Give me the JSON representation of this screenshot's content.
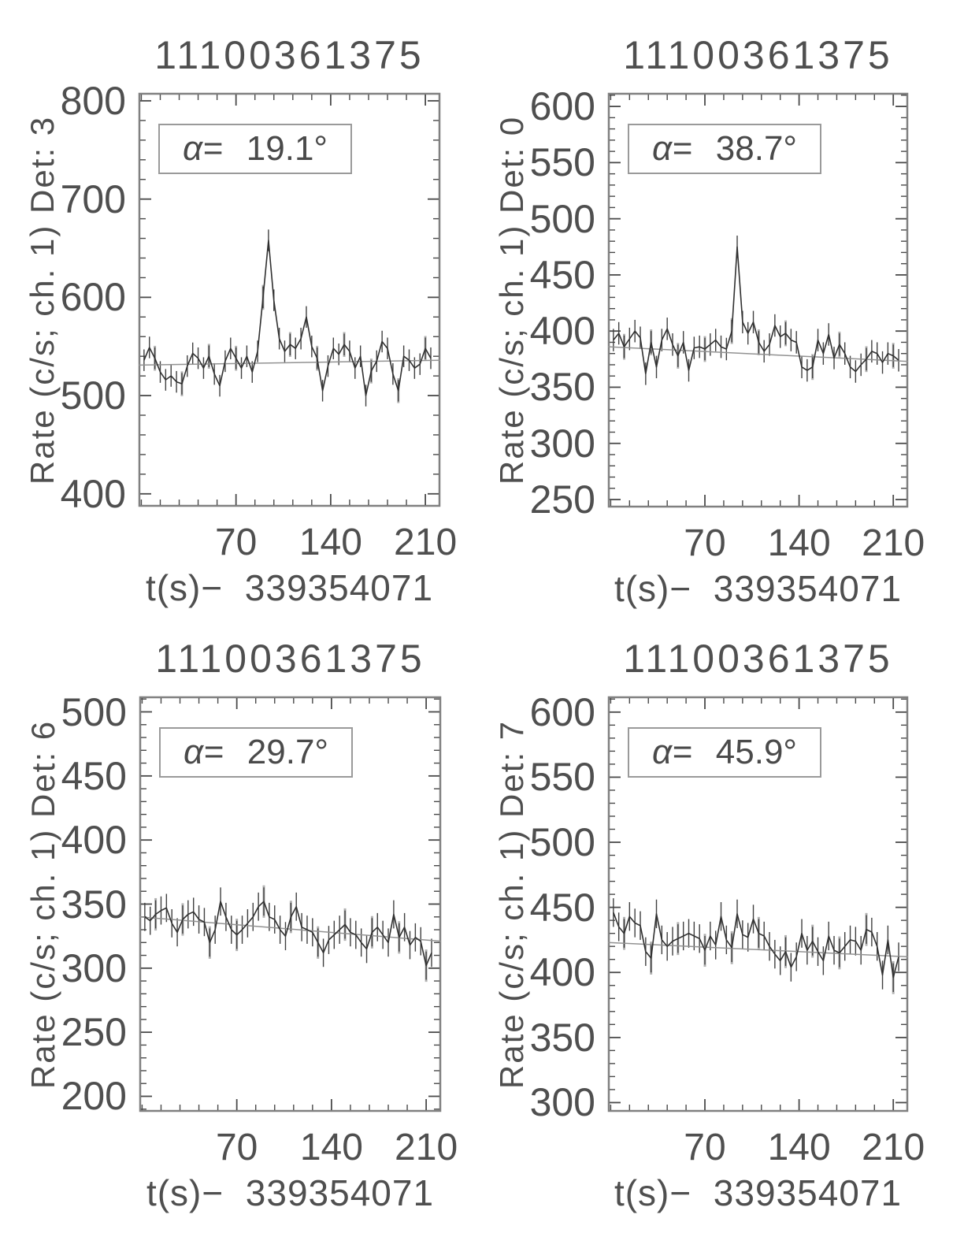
{
  "page": {
    "background": "#ffffff",
    "text_color": "#4f4f4f",
    "data_line_color": "#303030",
    "error_bar_color": "#404040",
    "gray_error_bar_color": "#b2b2b2",
    "trend_line_color": "#929292",
    "frame_color": "#808080",
    "tick_color": "#4a4a4a"
  },
  "chart_data": [
    {
      "type": "line",
      "title": "11100361375",
      "ylabel": "Rate (c/s; ch. 1) Det: 3",
      "xlabel": "t(s)−  339354071",
      "alpha_symbol": "α=",
      "alpha_value": "19.1°",
      "xlim": [
        -2,
        221
      ],
      "ylim": [
        387,
        808
      ],
      "xticks": [
        70,
        140,
        210
      ],
      "yticks": [
        400,
        500,
        600,
        700,
        800
      ],
      "x_minor_step": 14,
      "y_minor_step": 20,
      "x_start": 2,
      "x_step": 4,
      "err": 11,
      "values": [
        536,
        549,
        538,
        524,
        516,
        520,
        514,
        512,
        530,
        543,
        538,
        528,
        540,
        522,
        510,
        535,
        548,
        538,
        528,
        540,
        524,
        545,
        600,
        658,
        597,
        558,
        545,
        552,
        548,
        558,
        580,
        550,
        538,
        505,
        530,
        548,
        542,
        552,
        545,
        528,
        540,
        500,
        525,
        535,
        555,
        548,
        522,
        505,
        540,
        536,
        528,
        532,
        548,
        538
      ],
      "trend": {
        "start": 531,
        "end": 536
      }
    },
    {
      "type": "line",
      "title": "11100361375",
      "ylabel": "Rate (c/s; ch. 1) Det: 0",
      "xlabel": "t(s)−  339354071",
      "alpha_symbol": "α=",
      "alpha_value": "38.7°",
      "xlim": [
        -2,
        221
      ],
      "ylim": [
        243,
        612
      ],
      "xticks": [
        70,
        140,
        210
      ],
      "yticks": [
        250,
        300,
        350,
        400,
        450,
        500,
        550,
        600
      ],
      "x_minor_step": 14,
      "y_minor_step": 10,
      "x_start": 2,
      "x_step": 4,
      "err": 10,
      "values": [
        392,
        398,
        386,
        393,
        400,
        394,
        362,
        390,
        368,
        392,
        402,
        388,
        378,
        390,
        365,
        385,
        386,
        384,
        388,
        392,
        386,
        384,
        400,
        475,
        408,
        398,
        408,
        390,
        382,
        388,
        405,
        395,
        398,
        392,
        390,
        368,
        365,
        368,
        392,
        380,
        397,
        376,
        388,
        380,
        368,
        364,
        370,
        375,
        382,
        380,
        372,
        380,
        378,
        374
      ],
      "trend": {
        "start": 386,
        "end": 373
      }
    },
    {
      "type": "line",
      "title": "11100361375",
      "ylabel": "Rate (c/s; ch. 1) Det: 6",
      "xlabel": "t(s)−  339354071",
      "alpha_symbol": "α=",
      "alpha_value": "29.7°",
      "xlim": [
        -2,
        221
      ],
      "ylim": [
        188,
        512
      ],
      "xticks": [
        70,
        140,
        210
      ],
      "yticks": [
        200,
        250,
        300,
        350,
        400,
        450,
        500
      ],
      "x_minor_step": 14,
      "y_minor_step": 10,
      "x_start": 2,
      "x_step": 4,
      "err": 11,
      "values": [
        340,
        337,
        342,
        345,
        347,
        335,
        328,
        338,
        342,
        344,
        338,
        336,
        320,
        330,
        352,
        340,
        330,
        326,
        330,
        335,
        340,
        348,
        352,
        340,
        338,
        330,
        325,
        340,
        348,
        332,
        330,
        328,
        320,
        312,
        322,
        326,
        330,
        334,
        328,
        326,
        320,
        315,
        328,
        332,
        326,
        320,
        342,
        324,
        332,
        318,
        324,
        321,
        302,
        312
      ],
      "trend": {
        "start": 340,
        "end": 321
      }
    },
    {
      "type": "line",
      "title": "11100361375",
      "ylabel": "Rate (c/s; ch. 1) Det: 7",
      "xlabel": "t(s)−  339354071",
      "alpha_symbol": "α=",
      "alpha_value": "45.9°",
      "xlim": [
        -2,
        221
      ],
      "ylim": [
        293,
        612
      ],
      "xticks": [
        70,
        140,
        210
      ],
      "yticks": [
        300,
        350,
        400,
        450,
        500,
        550,
        600
      ],
      "x_minor_step": 14,
      "y_minor_step": 10,
      "x_start": 2,
      "x_step": 4,
      "err": 11,
      "values": [
        446,
        435,
        430,
        443,
        438,
        436,
        416,
        411,
        445,
        425,
        420,
        424,
        426,
        428,
        430,
        428,
        426,
        417,
        428,
        421,
        443,
        425,
        419,
        445,
        429,
        427,
        441,
        430,
        428,
        420,
        414,
        409,
        416,
        404,
        412,
        430,
        417,
        424,
        416,
        409,
        428,
        417,
        415,
        420,
        425,
        424,
        417,
        433,
        431,
        420,
        398,
        425,
        396,
        412
      ],
      "trend": {
        "start": 423,
        "end": 412
      }
    }
  ]
}
